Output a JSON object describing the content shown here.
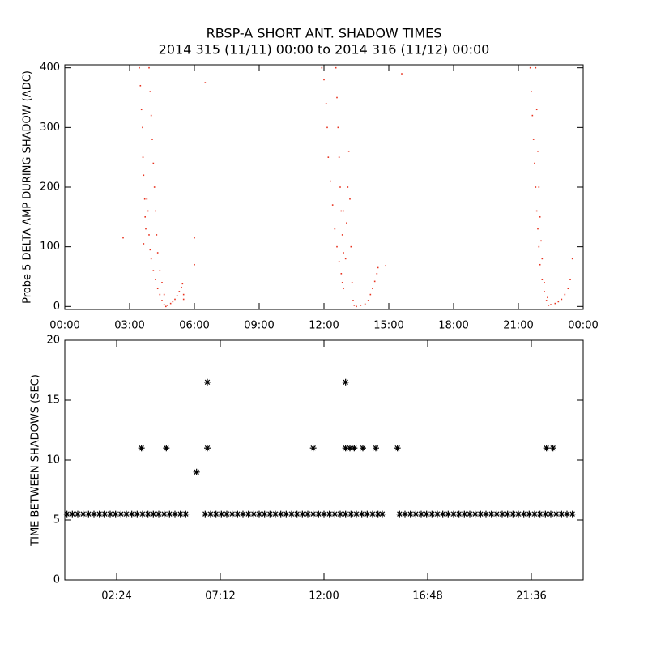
{
  "chart_data": [
    {
      "type": "scatter",
      "title": "RBSP-A SHORT ANT. SHADOW TIMES",
      "subtitle": "2014 315 (11/11) 00:00 to 2014 316 (11/12) 00:00",
      "ylabel": "Probe 5 DELTA AMP DURING SHADOW (ADC)",
      "color": "#e8321e",
      "xlim": [
        0,
        24
      ],
      "ylim": [
        -5,
        405
      ],
      "xticks": [
        {
          "value": 0,
          "label": "00:00"
        },
        {
          "value": 3,
          "label": "03:00"
        },
        {
          "value": 6,
          "label": "06:00"
        },
        {
          "value": 9,
          "label": "09:00"
        },
        {
          "value": 12,
          "label": "12:00"
        },
        {
          "value": 15,
          "label": "15:00"
        },
        {
          "value": 18,
          "label": "18:00"
        },
        {
          "value": 21,
          "label": "21:00"
        },
        {
          "value": 24,
          "label": "00:00"
        }
      ],
      "yticks": [
        0,
        100,
        200,
        300,
        400
      ],
      "x": [
        3.45,
        3.5,
        3.55,
        3.6,
        3.62,
        3.65,
        3.7,
        3.72,
        3.75,
        3.8,
        3.85,
        3.9,
        3.95,
        4.0,
        4.1,
        4.2,
        4.3,
        4.4,
        4.5,
        4.6,
        4.68,
        3.9,
        3.95,
        4.0,
        4.05,
        4.1,
        4.15,
        4.2,
        4.25,
        4.3,
        4.4,
        4.5,
        4.6,
        4.75,
        4.9,
        5.0,
        5.1,
        5.2,
        5.3,
        5.4,
        5.45,
        5.5,
        5.5,
        2.7,
        6.0,
        6.0,
        6.5,
        3.65,
        11.9,
        12.0,
        12.1,
        12.15,
        12.2,
        12.3,
        12.4,
        12.5,
        12.6,
        12.7,
        12.8,
        12.85,
        12.9,
        12.55,
        12.6,
        12.65,
        12.7,
        12.75,
        12.8,
        12.85,
        12.9,
        13.0,
        13.05,
        13.1,
        13.15,
        13.2,
        13.25,
        13.3,
        13.35,
        13.4,
        13.5,
        13.7,
        13.9,
        14.05,
        14.15,
        14.25,
        14.35,
        14.45,
        14.5,
        14.85,
        15.6,
        12.9,
        21.55,
        21.6,
        21.65,
        21.7,
        21.75,
        21.8,
        21.85,
        21.9,
        21.95,
        22.0,
        22.1,
        22.2,
        22.3,
        22.4,
        21.8,
        21.85,
        21.9,
        21.95,
        22.0,
        22.05,
        22.1,
        22.2,
        22.35,
        22.5,
        22.7,
        22.85,
        23.0,
        23.15,
        23.3,
        23.4,
        23.5
      ],
      "values": [
        400,
        370,
        330,
        300,
        250,
        220,
        180,
        150,
        130,
        180,
        160,
        120,
        95,
        80,
        60,
        45,
        30,
        20,
        10,
        3,
        0,
        400,
        360,
        320,
        280,
        240,
        200,
        160,
        120,
        90,
        60,
        40,
        20,
        2,
        5,
        8,
        12,
        18,
        25,
        32,
        38,
        20,
        12,
        115,
        115,
        70,
        375,
        105,
        400,
        380,
        340,
        300,
        250,
        210,
        170,
        130,
        100,
        75,
        55,
        40,
        30,
        400,
        350,
        300,
        250,
        200,
        160,
        120,
        90,
        80,
        140,
        200,
        260,
        180,
        100,
        40,
        10,
        2,
        0,
        2,
        4,
        10,
        20,
        30,
        42,
        55,
        65,
        68,
        390,
        160,
        400,
        360,
        320,
        280,
        240,
        200,
        160,
        130,
        100,
        70,
        45,
        25,
        10,
        2,
        400,
        330,
        260,
        200,
        150,
        110,
        80,
        40,
        15,
        3,
        5,
        8,
        12,
        20,
        30,
        45,
        80
      ]
    },
    {
      "type": "scatter",
      "ylabel": "TIME BETWEEN SHADOWS (SEC)",
      "color": "#000000",
      "xlim": [
        0,
        24
      ],
      "ylim": [
        0,
        20
      ],
      "xticks": [
        {
          "value": 2.4,
          "label": "02:24"
        },
        {
          "value": 7.2,
          "label": "07:12"
        },
        {
          "value": 12,
          "label": "12:00"
        },
        {
          "value": 16.8,
          "label": "16:48"
        },
        {
          "value": 21.6,
          "label": "21:36"
        }
      ],
      "yticks": [
        0,
        5,
        10,
        15,
        20
      ],
      "x": [
        0.1,
        0.35,
        0.6,
        0.85,
        1.1,
        1.35,
        1.6,
        1.85,
        2.1,
        2.35,
        2.6,
        2.85,
        3.1,
        3.35,
        3.6,
        3.85,
        4.1,
        4.35,
        4.6,
        4.85,
        5.1,
        5.35,
        5.6,
        6.5,
        6.75,
        7.0,
        7.25,
        7.5,
        7.75,
        8.0,
        8.25,
        8.5,
        8.75,
        9.0,
        9.25,
        9.5,
        9.75,
        10.0,
        10.25,
        10.5,
        10.75,
        11.0,
        11.25,
        11.5,
        11.75,
        12.0,
        12.25,
        12.5,
        12.75,
        13.0,
        13.25,
        13.5,
        13.75,
        14.0,
        14.25,
        14.5,
        14.7,
        15.5,
        15.75,
        16.0,
        16.25,
        16.5,
        16.75,
        17.0,
        17.25,
        17.5,
        17.75,
        18.0,
        18.25,
        18.5,
        18.75,
        19.0,
        19.25,
        19.5,
        19.75,
        20.0,
        20.25,
        20.5,
        20.75,
        21.0,
        21.25,
        21.5,
        21.75,
        22.0,
        22.25,
        22.5,
        22.75,
        23.0,
        23.25,
        23.5,
        3.55,
        4.7,
        6.1,
        6.6,
        6.6,
        11.5,
        13.0,
        13.0,
        13.2,
        13.4,
        13.8,
        14.4,
        15.4,
        22.3,
        22.6
      ],
      "values": [
        5.5,
        5.5,
        5.5,
        5.5,
        5.5,
        5.5,
        5.5,
        5.5,
        5.5,
        5.5,
        5.5,
        5.5,
        5.5,
        5.5,
        5.5,
        5.5,
        5.5,
        5.5,
        5.5,
        5.5,
        5.5,
        5.5,
        5.5,
        5.5,
        5.5,
        5.5,
        5.5,
        5.5,
        5.5,
        5.5,
        5.5,
        5.5,
        5.5,
        5.5,
        5.5,
        5.5,
        5.5,
        5.5,
        5.5,
        5.5,
        5.5,
        5.5,
        5.5,
        5.5,
        5.5,
        5.5,
        5.5,
        5.5,
        5.5,
        5.5,
        5.5,
        5.5,
        5.5,
        5.5,
        5.5,
        5.5,
        5.5,
        5.5,
        5.5,
        5.5,
        5.5,
        5.5,
        5.5,
        5.5,
        5.5,
        5.5,
        5.5,
        5.5,
        5.5,
        5.5,
        5.5,
        5.5,
        5.5,
        5.5,
        5.5,
        5.5,
        5.5,
        5.5,
        5.5,
        5.5,
        5.5,
        5.5,
        5.5,
        5.5,
        5.5,
        5.5,
        5.5,
        5.5,
        5.5,
        5.5,
        11,
        11,
        9,
        16.5,
        11,
        11,
        16.5,
        11,
        11,
        11,
        11,
        11,
        11,
        11,
        11
      ]
    }
  ]
}
